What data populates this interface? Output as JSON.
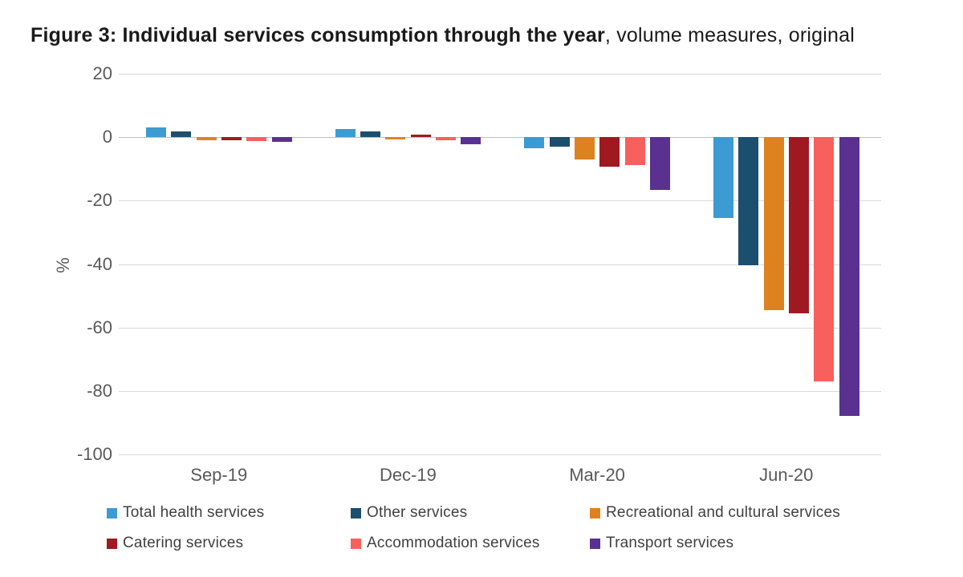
{
  "title": {
    "bold": "Figure 3: Individual services consumption through the year",
    "regular": ", volume measures, original"
  },
  "colors": {
    "gridline": "#d9d9d9",
    "zero_line": "#bfbfbf",
    "axis_text": "#595959",
    "legend_text": "#404040",
    "title_text": "#1a1a1a",
    "background": "#ffffff"
  },
  "chart_data": {
    "type": "bar",
    "title": "Figure 3: Individual services consumption through the year, volume measures, original",
    "categories": [
      "Sep-19",
      "Dec-19",
      "Mar-20",
      "Jun-20"
    ],
    "series": [
      {
        "name": "Total health services",
        "color": "#3d9bd3",
        "values": [
          3.0,
          2.6,
          -3.5,
          -25.5
        ]
      },
      {
        "name": "Other services",
        "color": "#1c4e6e",
        "values": [
          1.9,
          1.9,
          -2.9,
          -40.5
        ]
      },
      {
        "name": "Recreational and cultural services",
        "color": "#de821f",
        "values": [
          -1.0,
          -0.6,
          -7.0,
          -54.5
        ]
      },
      {
        "name": "Catering services",
        "color": "#9e1a20",
        "values": [
          -0.9,
          0.7,
          -9.4,
          -55.5
        ]
      },
      {
        "name": "Accommodation services",
        "color": "#f8605d",
        "values": [
          -1.1,
          -1.0,
          -8.9,
          -77.0
        ]
      },
      {
        "name": "Transport services",
        "color": "#5a3190",
        "values": [
          -1.5,
          -2.3,
          -16.6,
          -88.0
        ]
      }
    ],
    "xlabel": "",
    "ylabel": "%",
    "ylim": [
      -100,
      20
    ],
    "yticks": [
      20,
      0,
      -20,
      -40,
      -60,
      -80,
      -100
    ],
    "grid": true,
    "legend_position": "bottom"
  }
}
